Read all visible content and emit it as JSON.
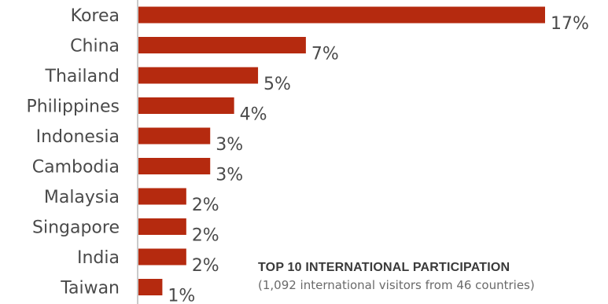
{
  "chart_data": {
    "type": "bar",
    "orientation": "horizontal",
    "categories": [
      "Korea",
      "China",
      "Thailand",
      "Philippines",
      "Indonesia",
      "Cambodia",
      "Malaysia",
      "Singapore",
      "India",
      "Taiwan"
    ],
    "values": [
      17,
      7,
      5,
      4,
      3,
      3,
      2,
      2,
      2,
      1
    ],
    "value_labels": [
      "17%",
      "7%",
      "5%",
      "4%",
      "3%",
      "3%",
      "2%",
      "2%",
      "2%",
      "1%"
    ],
    "unit": "%",
    "bar_color": "#b52a0f",
    "xlim": [
      0,
      17
    ],
    "grid": false,
    "legend": "none"
  },
  "annotation": {
    "title": "TOP 10 INTERNATIONAL PARTICIPATION",
    "subtitle": "(1,092 international visitors from 46 countries)"
  }
}
